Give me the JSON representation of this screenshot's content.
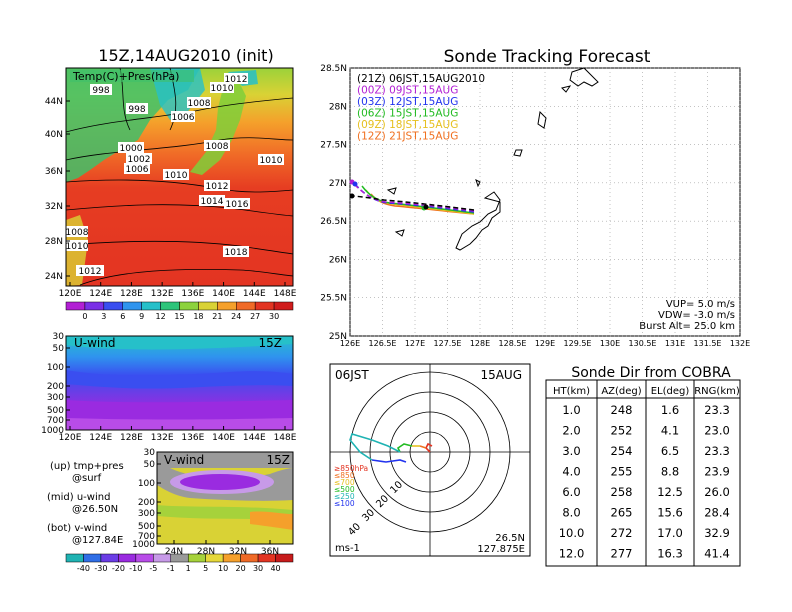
{
  "map_panel": {
    "title": "15Z,14AUG2010 (init)",
    "label": "Temp(C)+Pres(hPa)",
    "lon_ticks": [
      "120E",
      "124E",
      "128E",
      "132E",
      "136E",
      "140E",
      "144E",
      "148E"
    ],
    "lat_ticks": [
      "44N",
      "40N",
      "36N",
      "32N",
      "28N",
      "24N"
    ],
    "pressure_labels": [
      "998",
      "1012",
      "1010",
      "998",
      "1008",
      "1006",
      "1000",
      "1002",
      "1006",
      "1008",
      "1010",
      "1010",
      "1012",
      "1014",
      "1016",
      "1008",
      "1010",
      "1018",
      "1012"
    ],
    "colorbar_labels": [
      "0",
      "3",
      "6",
      "9",
      "12",
      "15",
      "18",
      "21",
      "24",
      "27",
      "30"
    ],
    "colorbar_colors": [
      "#b21fd4",
      "#7a2fe6",
      "#3a4ef0",
      "#2f94ee",
      "#26c0c9",
      "#2dc47a",
      "#8cd23d",
      "#d9d235",
      "#f5a02b",
      "#f06a27",
      "#e33422",
      "#d01c1c"
    ]
  },
  "u_panel": {
    "label": "U-wind",
    "time": "15Z",
    "y_ticks": [
      "30",
      "50",
      "100",
      "200",
      "300",
      "500",
      "700",
      "1000"
    ],
    "x_ticks": [
      "120E",
      "124E",
      "128E",
      "132E",
      "136E",
      "140E",
      "144E",
      "148E"
    ]
  },
  "v_panel": {
    "label": "V-wind",
    "time": "15Z",
    "y_ticks": [
      "30",
      "50",
      "100",
      "200",
      "300",
      "500",
      "700",
      "1000"
    ],
    "x_ticks": [
      "24N",
      "28N",
      "32N",
      "36N"
    ],
    "notes": [
      {
        "line1": "(up) tmp+pres",
        "line2": "@surf"
      },
      {
        "line1": "(mid) u-wind",
        "line2": "@26.50N"
      },
      {
        "line1": "(bot) v-wind",
        "line2": "@127.84E"
      }
    ],
    "colorbar_labels": [
      "-40",
      "-30",
      "-20",
      "-10",
      "-5",
      "-1",
      "1",
      "5",
      "10",
      "20",
      "30",
      "40"
    ],
    "colorbar_colors": [
      "#1fb3b3",
      "#2f6ee6",
      "#6b3de6",
      "#9a2be0",
      "#b84ce8",
      "#c79ae8",
      "#9a9a9a",
      "#a6d23b",
      "#e6d83a",
      "#f5a02b",
      "#f06a27",
      "#e33422",
      "#c71b1b"
    ]
  },
  "track_panel": {
    "title": "Sonde Tracking Forecast",
    "lat_ticks": [
      "28.5N",
      "28N",
      "27.5N",
      "27N",
      "26.5N",
      "26N",
      "25.5N",
      "25N"
    ],
    "lon_ticks": [
      "126E",
      "126.5E",
      "127E",
      "127.5E",
      "128E",
      "128.5E",
      "129E",
      "129.5E",
      "130E",
      "130.5E",
      "131E",
      "131.5E",
      "132E"
    ],
    "legend": [
      {
        "text": "(21Z)  06JST,15AUG2010",
        "color": "#000000"
      },
      {
        "text": "(00Z)  09JST,15AUG",
        "color": "#b21fd4"
      },
      {
        "text": "(03Z)  12JST,15AUG",
        "color": "#2233ee"
      },
      {
        "text": "(06Z)  15JST,15AUG",
        "color": "#22bb22"
      },
      {
        "text": "(09Z)  18JST,15AUG",
        "color": "#e6c020"
      },
      {
        "text": "(12Z)  21JST,15AUG",
        "color": "#f07020"
      }
    ],
    "info": [
      "VUP=  5.0  m/s",
      "VDW= -3.0  m/s",
      "Burst Alt=  25.0  km"
    ]
  },
  "polar_panel": {
    "time": "06JST",
    "date": "15AUG",
    "range_labels": [
      "10",
      "20",
      "30",
      "40"
    ],
    "pressure_legend": [
      {
        "text": "≥850hPa",
        "color": "#e33422"
      },
      {
        "text": "≤850",
        "color": "#f07020"
      },
      {
        "text": "≤700",
        "color": "#e6c020"
      },
      {
        "text": "≤500",
        "color": "#22bb22"
      },
      {
        "text": "≤250",
        "color": "#1fb3b3"
      },
      {
        "text": "≤100",
        "color": "#2233ee"
      }
    ],
    "unit": "ms-1",
    "lat": "26.5N",
    "lon": "127.875E"
  },
  "chart_data": {
    "type": "table",
    "title": "Sonde Dir from COBRA",
    "columns": [
      "HT(km)",
      "AZ(deg)",
      "EL(deg)",
      "RNG(km)"
    ],
    "rows": [
      [
        "1.0",
        "248",
        "1.6",
        "23.3"
      ],
      [
        "2.0",
        "252",
        "4.1",
        "23.0"
      ],
      [
        "3.0",
        "254",
        "6.5",
        "23.3"
      ],
      [
        "4.0",
        "255",
        "8.8",
        "23.9"
      ],
      [
        "6.0",
        "258",
        "12.5",
        "26.0"
      ],
      [
        "8.0",
        "265",
        "15.6",
        "28.4"
      ],
      [
        "10.0",
        "272",
        "17.0",
        "32.9"
      ],
      [
        "12.0",
        "277",
        "16.3",
        "41.4"
      ]
    ]
  }
}
